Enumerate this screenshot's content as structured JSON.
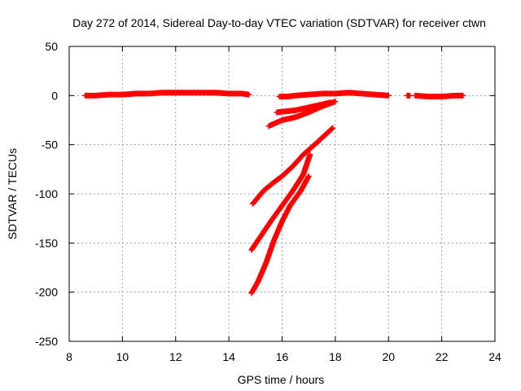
{
  "chart_data": {
    "type": "scatter",
    "title": "Day 272 of 2014, Sidereal Day-to-day VTEC variation (SDTVAR) for receiver ctwn",
    "xlabel": "GPS time / hours",
    "ylabel": "SDTVAR / TECUs",
    "xlim": [
      8,
      24
    ],
    "ylim": [
      -250,
      50
    ],
    "xticks": [
      8,
      10,
      12,
      14,
      16,
      18,
      20,
      22,
      24
    ],
    "yticks": [
      50,
      0,
      -50,
      -100,
      -150,
      -200,
      -250
    ],
    "grid": true,
    "marker_color": "#ff0000",
    "series": [
      {
        "points": [
          [
            8.6,
            0
          ],
          [
            9.0,
            0
          ],
          [
            9.5,
            1
          ],
          [
            10.0,
            1
          ],
          [
            10.5,
            2
          ],
          [
            11.0,
            2
          ],
          [
            11.5,
            3
          ],
          [
            12.0,
            3
          ],
          [
            12.5,
            3
          ],
          [
            13.0,
            3
          ],
          [
            13.5,
            3
          ],
          [
            14.0,
            2
          ],
          [
            14.5,
            2
          ],
          [
            14.75,
            1
          ]
        ]
      },
      {
        "points": [
          [
            15.9,
            -1
          ],
          [
            16.2,
            -1
          ],
          [
            16.5,
            0
          ],
          [
            17.0,
            1
          ],
          [
            17.5,
            2
          ],
          [
            18.0,
            2
          ],
          [
            18.5,
            3
          ],
          [
            19.0,
            2
          ],
          [
            19.5,
            1
          ],
          [
            20.0,
            0
          ]
        ]
      },
      {
        "points": [
          [
            20.7,
            0
          ],
          [
            20.8,
            0
          ]
        ]
      },
      {
        "points": [
          [
            21.0,
            0
          ],
          [
            21.5,
            -1
          ],
          [
            22.0,
            -1
          ],
          [
            22.5,
            0
          ],
          [
            22.8,
            0
          ]
        ]
      },
      {
        "points": [
          [
            15.8,
            -17
          ],
          [
            16.5,
            -15
          ],
          [
            17.0,
            -12
          ],
          [
            17.5,
            -9
          ],
          [
            17.8,
            -7
          ]
        ]
      },
      {
        "points": [
          [
            15.5,
            -31
          ],
          [
            16.0,
            -25
          ],
          [
            16.5,
            -22
          ],
          [
            17.0,
            -17
          ],
          [
            17.5,
            -11
          ],
          [
            18.0,
            -6
          ]
        ]
      },
      {
        "points": [
          [
            14.9,
            -110
          ],
          [
            15.3,
            -97
          ],
          [
            15.7,
            -88
          ],
          [
            16.0,
            -82
          ],
          [
            16.4,
            -72
          ],
          [
            16.8,
            -60
          ],
          [
            17.3,
            -48
          ],
          [
            17.9,
            -33
          ]
        ]
      },
      {
        "points": [
          [
            14.85,
            -157
          ],
          [
            15.2,
            -143
          ],
          [
            15.6,
            -127
          ],
          [
            16.0,
            -112
          ],
          [
            16.4,
            -97
          ],
          [
            16.8,
            -80
          ],
          [
            17.05,
            -60
          ]
        ]
      },
      {
        "points": [
          [
            14.85,
            -201
          ],
          [
            15.1,
            -189
          ],
          [
            15.4,
            -170
          ],
          [
            15.7,
            -147
          ],
          [
            16.0,
            -128
          ],
          [
            16.3,
            -112
          ],
          [
            16.7,
            -97
          ],
          [
            17.0,
            -82
          ]
        ]
      }
    ]
  }
}
